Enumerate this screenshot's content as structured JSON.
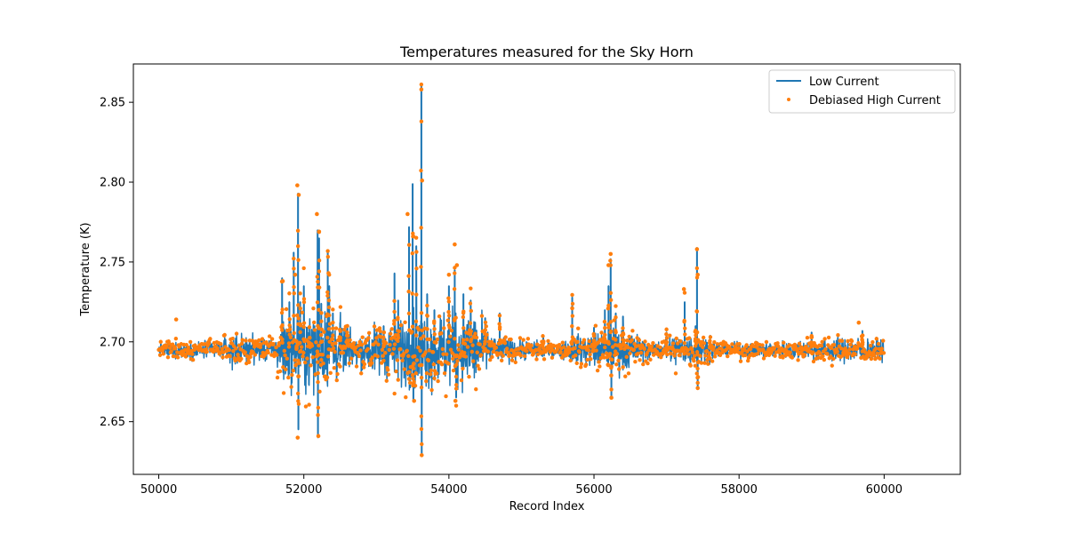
{
  "chart_data": {
    "type": "line",
    "title": "Temperatures measured for the Sky Horn",
    "xlabel": "Record Index",
    "ylabel": "Temperature (K)",
    "xlim": [
      49650,
      61050
    ],
    "ylim": [
      2.617,
      2.874
    ],
    "x_ticks": [
      50000,
      52000,
      54000,
      56000,
      58000,
      60000
    ],
    "x_tick_labels": [
      "50000",
      "52000",
      "54000",
      "56000",
      "58000",
      "60000"
    ],
    "y_ticks": [
      2.65,
      2.7,
      2.75,
      2.8,
      2.85
    ],
    "y_tick_labels": [
      "2.65",
      "2.70",
      "2.75",
      "2.80",
      "2.85"
    ],
    "grid": false,
    "legend_position": "upper right",
    "baseline": 2.695,
    "x_range": [
      50000,
      60000
    ],
    "series": [
      {
        "name": "Low Current",
        "kind": "line",
        "color": "#1f77b4",
        "noise_envelope": [
          [
            50000,
            0.002
          ],
          [
            50900,
            0.003
          ],
          [
            51000,
            0.005
          ],
          [
            51600,
            0.003
          ],
          [
            51700,
            0.011
          ],
          [
            52400,
            0.011
          ],
          [
            52700,
            0.004
          ],
          [
            53000,
            0.008
          ],
          [
            53700,
            0.012
          ],
          [
            54400,
            0.011
          ],
          [
            54600,
            0.004
          ],
          [
            55500,
            0.002
          ],
          [
            55700,
            0.004
          ],
          [
            56000,
            0.005
          ],
          [
            56400,
            0.007
          ],
          [
            56800,
            0.002
          ],
          [
            57100,
            0.005
          ],
          [
            57500,
            0.004
          ],
          [
            57800,
            0.002
          ],
          [
            59000,
            0.003
          ],
          [
            59600,
            0.004
          ],
          [
            60000,
            0.003
          ]
        ],
        "spikes": [
          [
            51700,
            2.74
          ],
          [
            51800,
            2.725
          ],
          [
            51860,
            2.756
          ],
          [
            51900,
            2.698
          ],
          [
            51920,
            2.793
          ],
          [
            51925,
            2.645
          ],
          [
            51950,
            2.725
          ],
          [
            52000,
            2.735
          ],
          [
            52080,
            2.71
          ],
          [
            52190,
            2.77
          ],
          [
            52195,
            2.64
          ],
          [
            52210,
            2.765
          ],
          [
            52240,
            2.724
          ],
          [
            52330,
            2.757
          ],
          [
            52350,
            2.735
          ],
          [
            52400,
            2.718
          ],
          [
            52500,
            2.712
          ],
          [
            52600,
            2.71
          ],
          [
            53100,
            2.71
          ],
          [
            53250,
            2.743
          ],
          [
            53300,
            2.726
          ],
          [
            53450,
            2.772
          ],
          [
            53500,
            2.799
          ],
          [
            53510,
            2.664
          ],
          [
            53550,
            2.76
          ],
          [
            53620,
            2.86
          ],
          [
            53625,
            2.63
          ],
          [
            53700,
            2.73
          ],
          [
            53800,
            2.72
          ],
          [
            54000,
            2.735
          ],
          [
            54080,
            2.745
          ],
          [
            54100,
            2.665
          ],
          [
            54200,
            2.73
          ],
          [
            54300,
            2.726
          ],
          [
            54500,
            2.715
          ],
          [
            54700,
            2.718
          ],
          [
            55300,
            2.704
          ],
          [
            55700,
            2.728
          ],
          [
            56000,
            2.709
          ],
          [
            56150,
            2.72
          ],
          [
            56200,
            2.735
          ],
          [
            56230,
            2.752
          ],
          [
            56240,
            2.665
          ],
          [
            56300,
            2.718
          ],
          [
            56400,
            2.716
          ],
          [
            57000,
            2.706
          ],
          [
            57250,
            2.725
          ],
          [
            57400,
            2.71
          ],
          [
            57420,
            2.759
          ],
          [
            57430,
            2.672
          ],
          [
            57600,
            2.704
          ],
          [
            59000,
            2.706
          ],
          [
            59700,
            2.707
          ]
        ]
      },
      {
        "name": "Debiased High Current",
        "kind": "scatter",
        "color": "#ff7f0e",
        "marker": "dot",
        "highlighted_points": [
          [
            50240,
            2.714
          ],
          [
            51710,
            2.738
          ],
          [
            51880,
            2.742
          ],
          [
            51910,
            2.798
          ],
          [
            51915,
            2.64
          ],
          [
            51930,
            2.792
          ],
          [
            52180,
            2.78
          ],
          [
            52200,
            2.641
          ],
          [
            52210,
            2.769
          ],
          [
            52340,
            2.743
          ],
          [
            53430,
            2.78
          ],
          [
            53510,
            2.766
          ],
          [
            53520,
            2.663
          ],
          [
            53620,
            2.858
          ],
          [
            53625,
            2.629
          ],
          [
            53630,
            2.801
          ],
          [
            54000,
            2.742
          ],
          [
            54080,
            2.761
          ],
          [
            54110,
            2.748
          ],
          [
            54090,
            2.663
          ],
          [
            55700,
            2.721
          ],
          [
            56200,
            2.748
          ],
          [
            56230,
            2.755
          ],
          [
            56240,
            2.665
          ],
          [
            57240,
            2.733
          ],
          [
            57420,
            2.758
          ],
          [
            57430,
            2.742
          ],
          [
            57430,
            2.671
          ],
          [
            59650,
            2.712
          ]
        ]
      }
    ]
  }
}
